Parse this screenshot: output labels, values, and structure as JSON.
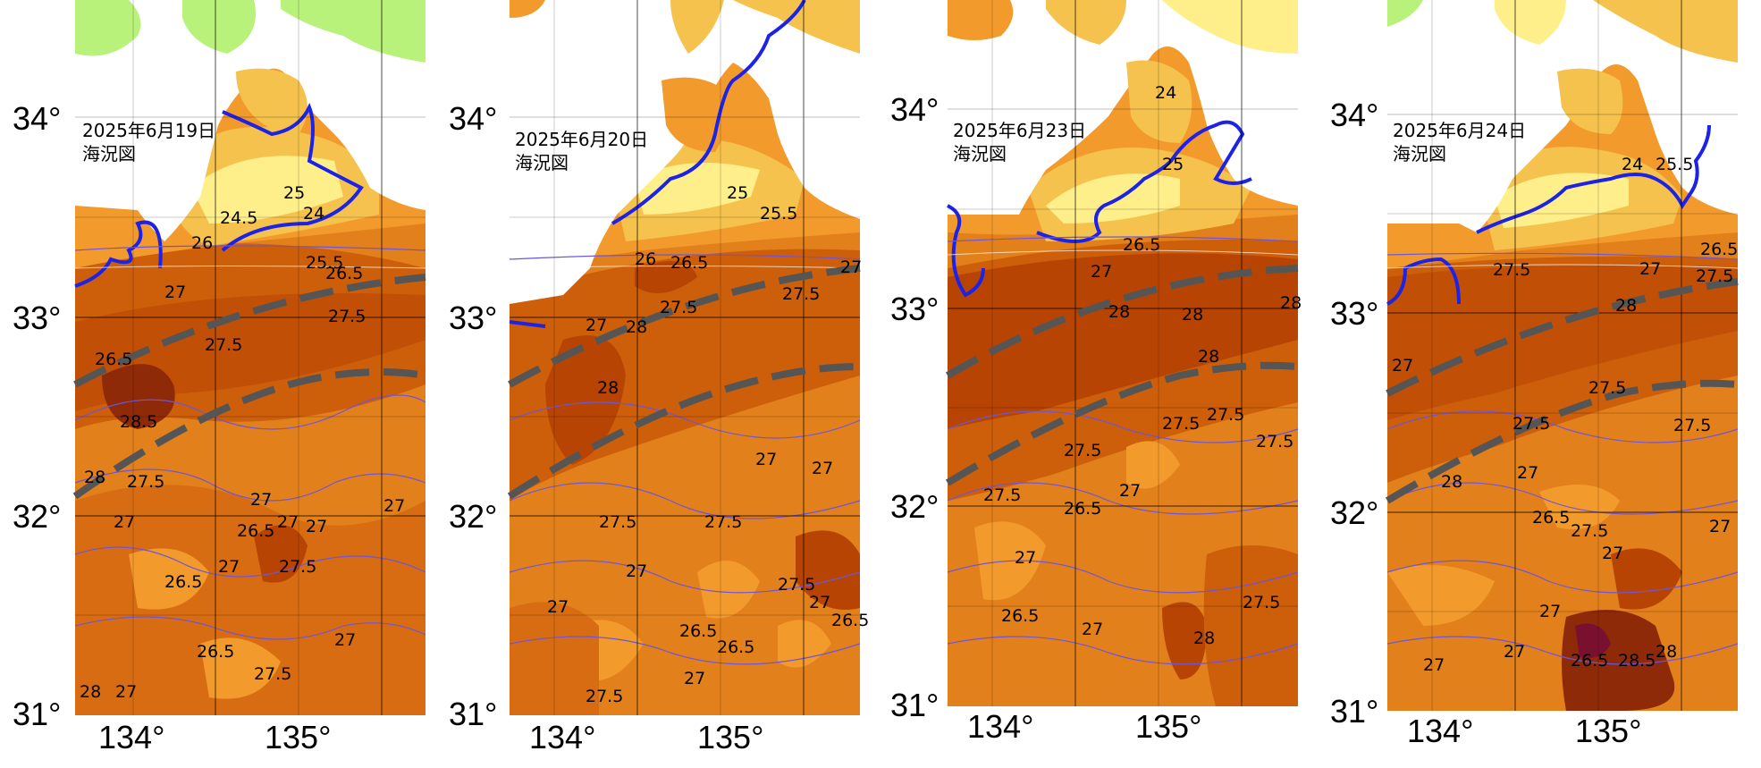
{
  "panels": [
    {
      "date": "2025年6月19日",
      "subtitle": "海況図",
      "lat_labels": [
        "34°",
        "33°",
        "32°",
        "31°"
      ],
      "lon_labels": [
        "134°",
        "135°"
      ],
      "contour_labels": [
        "25",
        "24",
        "24.5",
        "26",
        "27",
        "25.5",
        "26.5",
        "27.5",
        "26.5",
        "27.5",
        "28.5",
        "28",
        "27.5",
        "27",
        "27",
        "26.5",
        "27",
        "27",
        "26.5",
        "27",
        "26.5",
        "27.5",
        "27",
        "28",
        "27",
        "27.5",
        "27"
      ]
    },
    {
      "date": "2025年6月20日",
      "subtitle": "海況図",
      "lat_labels": [
        "34°",
        "33°",
        "32°",
        "31°"
      ],
      "lon_labels": [
        "134°",
        "135°"
      ],
      "contour_labels": [
        "25",
        "25.5",
        "26",
        "26.5",
        "27",
        "28",
        "27.5",
        "27.5",
        "28",
        "27",
        "27.5",
        "27",
        "27",
        "27.5",
        "27",
        "27",
        "26.5",
        "26.5",
        "27.5",
        "27",
        "27.5",
        "26.5",
        "27"
      ]
    },
    {
      "date": "2025年6月23日",
      "subtitle": "海況図",
      "lat_labels": [
        "34°",
        "33°",
        "32°",
        "31°"
      ],
      "lon_labels": [
        "134°",
        "135°"
      ],
      "contour_labels": [
        "24",
        "25",
        "26.5",
        "27",
        "28",
        "28",
        "28",
        "28",
        "27.5",
        "27.5",
        "27.5",
        "27.5",
        "27",
        "26.5",
        "27.5",
        "27",
        "26.5",
        "27",
        "28",
        "27.5"
      ]
    },
    {
      "date": "2025年6月24日",
      "subtitle": "海況図",
      "lat_labels": [
        "34°",
        "33°",
        "32°",
        "31°"
      ],
      "lon_labels": [
        "134°",
        "135°"
      ],
      "contour_labels": [
        "24",
        "25.5",
        "27.5",
        "27",
        "28",
        "26.5",
        "27.5",
        "27",
        "27.5",
        "27.5",
        "28",
        "27",
        "27.5",
        "26.5",
        "27",
        "27",
        "27.5",
        "27",
        "27",
        "27",
        "28.5",
        "28",
        "26.5"
      ]
    }
  ],
  "legend_colors": {
    "land": "#ffffff",
    "green_zone": "#b8f27a",
    "sst_24": "#ffef8a",
    "sst_25": "#f5c24e",
    "sst_26": "#f39a2c",
    "sst_27": "#e07a16",
    "sst_27_5": "#cd5e0a",
    "sst_28": "#b84404",
    "sst_28_5": "#8f2a08",
    "warm_core": "#7a1030",
    "front_line": "#1c22e6",
    "kuroshio_axis": "#555555",
    "isotherm": "#6f55d8"
  }
}
